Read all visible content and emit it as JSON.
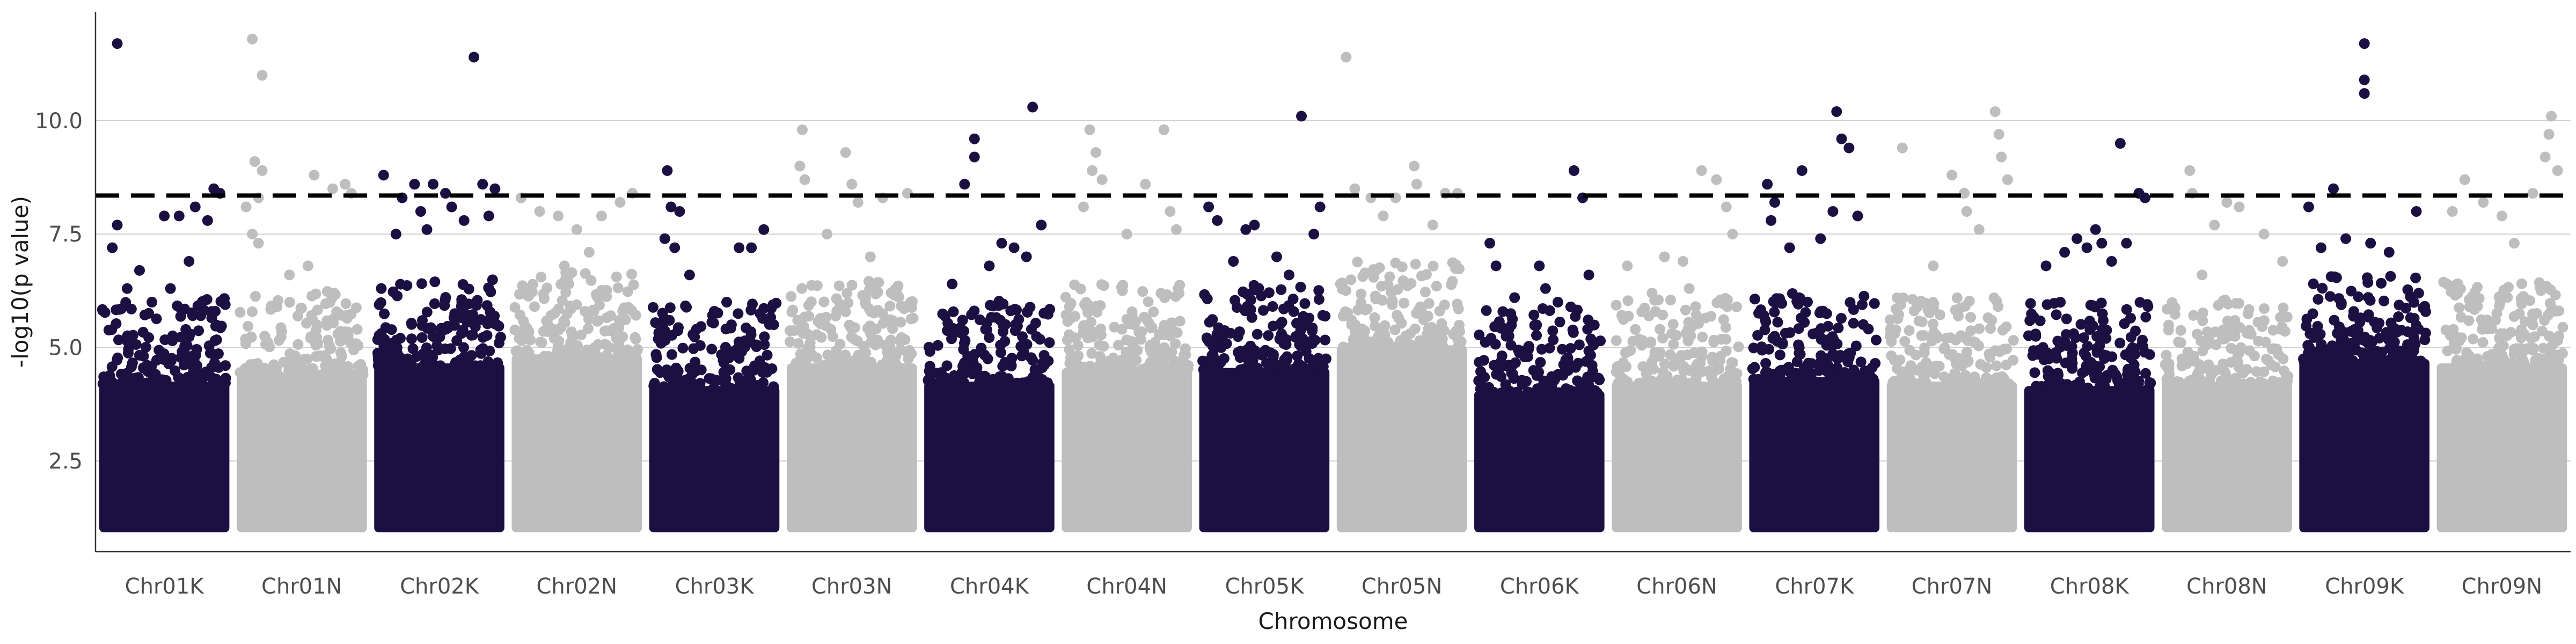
{
  "chart_data": {
    "type": "scatter",
    "subtype": "manhattan",
    "title": "",
    "xlabel": "Chromosome",
    "ylabel": "-log10(p value)",
    "ylim": [
      0.5,
      12.4
    ],
    "yticks": [
      2.5,
      5.0,
      7.5,
      10.0
    ],
    "ytick_labels": [
      "2.5",
      "5.0",
      "7.5",
      "10.0"
    ],
    "grid": "horizontal major",
    "legend": "none",
    "significance_threshold": 8.35,
    "colors": {
      "odd": "#1c0f42",
      "even": "#bebebe",
      "threshold": "#000000",
      "grid": "#d0d0d0",
      "axis": "#333333"
    },
    "categories": [
      "Chr01K",
      "Chr01N",
      "Chr02K",
      "Chr02N",
      "Chr03K",
      "Chr03N",
      "Chr04K",
      "Chr04N",
      "Chr05K",
      "Chr05N",
      "Chr06K",
      "Chr06N",
      "Chr07K",
      "Chr07N",
      "Chr08K",
      "Chr08N",
      "Chr09K",
      "Chr09N"
    ],
    "baseline": 1.0,
    "series": [
      {
        "chromosome": "Chr01K",
        "color_group": "odd",
        "bulk_top": 4.6,
        "points": [
          [
            0.12,
            11.7
          ],
          [
            0.12,
            7.7
          ],
          [
            0.08,
            7.2
          ],
          [
            0.2,
            6.3
          ],
          [
            0.5,
            7.9
          ],
          [
            0.62,
            7.9
          ],
          [
            0.75,
            8.1
          ],
          [
            0.85,
            7.8
          ],
          [
            0.9,
            8.5
          ],
          [
            0.95,
            8.4
          ],
          [
            0.3,
            6.7
          ],
          [
            0.4,
            6.0
          ],
          [
            0.55,
            6.3
          ],
          [
            0.7,
            6.9
          ]
        ]
      },
      {
        "chromosome": "Chr01N",
        "color_group": "even",
        "bulk_top": 4.8,
        "points": [
          [
            0.1,
            11.8
          ],
          [
            0.18,
            11.0
          ],
          [
            0.12,
            9.1
          ],
          [
            0.18,
            8.9
          ],
          [
            0.15,
            8.3
          ],
          [
            0.05,
            8.1
          ],
          [
            0.1,
            7.5
          ],
          [
            0.15,
            7.3
          ],
          [
            0.6,
            8.8
          ],
          [
            0.75,
            8.5
          ],
          [
            0.85,
            8.6
          ],
          [
            0.9,
            8.4
          ],
          [
            0.4,
            6.6
          ],
          [
            0.55,
            6.8
          ],
          [
            0.3,
            5.9
          ]
        ]
      },
      {
        "chromosome": "Chr02K",
        "color_group": "odd",
        "bulk_top": 5.0,
        "points": [
          [
            0.05,
            8.8
          ],
          [
            0.2,
            8.3
          ],
          [
            0.3,
            8.6
          ],
          [
            0.45,
            8.6
          ],
          [
            0.55,
            8.4
          ],
          [
            0.78,
            11.4
          ],
          [
            0.85,
            8.6
          ],
          [
            0.95,
            8.5
          ],
          [
            0.35,
            8.0
          ],
          [
            0.6,
            8.1
          ],
          [
            0.7,
            7.8
          ],
          [
            0.4,
            7.6
          ],
          [
            0.15,
            7.5
          ],
          [
            0.9,
            7.9
          ]
        ]
      },
      {
        "chromosome": "Chr02N",
        "color_group": "even",
        "bulk_top": 5.2,
        "points": [
          [
            0.05,
            8.3
          ],
          [
            0.2,
            8.0
          ],
          [
            0.35,
            7.9
          ],
          [
            0.5,
            7.6
          ],
          [
            0.7,
            7.9
          ],
          [
            0.85,
            8.2
          ],
          [
            0.95,
            8.4
          ],
          [
            0.6,
            7.1
          ],
          [
            0.4,
            6.8
          ]
        ]
      },
      {
        "chromosome": "Chr03K",
        "color_group": "odd",
        "bulk_top": 4.5,
        "points": [
          [
            0.12,
            8.9
          ],
          [
            0.15,
            8.1
          ],
          [
            0.22,
            8.0
          ],
          [
            0.1,
            7.4
          ],
          [
            0.18,
            7.2
          ],
          [
            0.7,
            7.2
          ],
          [
            0.8,
            7.2
          ],
          [
            0.9,
            7.6
          ],
          [
            0.3,
            6.6
          ],
          [
            0.6,
            6.0
          ],
          [
            0.5,
            5.8
          ]
        ]
      },
      {
        "chromosome": "Chr03N",
        "color_group": "even",
        "bulk_top": 5.0,
        "points": [
          [
            0.1,
            9.8
          ],
          [
            0.08,
            9.0
          ],
          [
            0.12,
            8.7
          ],
          [
            0.45,
            9.3
          ],
          [
            0.5,
            8.6
          ],
          [
            0.55,
            8.2
          ],
          [
            0.75,
            8.3
          ],
          [
            0.95,
            8.4
          ],
          [
            0.3,
            7.5
          ],
          [
            0.65,
            7.0
          ]
        ]
      },
      {
        "chromosome": "Chr04K",
        "color_group": "odd",
        "bulk_top": 4.6,
        "points": [
          [
            0.38,
            9.6
          ],
          [
            0.38,
            9.2
          ],
          [
            0.3,
            8.6
          ],
          [
            0.85,
            10.3
          ],
          [
            0.92,
            7.7
          ],
          [
            0.6,
            7.3
          ],
          [
            0.7,
            7.2
          ],
          [
            0.5,
            6.8
          ],
          [
            0.2,
            6.4
          ],
          [
            0.8,
            7.0
          ]
        ]
      },
      {
        "chromosome": "Chr04N",
        "color_group": "even",
        "bulk_top": 4.9,
        "points": [
          [
            0.2,
            9.8
          ],
          [
            0.25,
            9.3
          ],
          [
            0.22,
            8.9
          ],
          [
            0.3,
            8.7
          ],
          [
            0.65,
            8.6
          ],
          [
            0.8,
            9.8
          ],
          [
            0.85,
            8.0
          ],
          [
            0.15,
            8.1
          ],
          [
            0.5,
            7.5
          ],
          [
            0.9,
            7.6
          ]
        ]
      },
      {
        "chromosome": "Chr05K",
        "color_group": "odd",
        "bulk_top": 4.9,
        "points": [
          [
            0.05,
            8.1
          ],
          [
            0.12,
            7.8
          ],
          [
            0.35,
            7.6
          ],
          [
            0.42,
            7.7
          ],
          [
            0.8,
            10.1
          ],
          [
            0.9,
            7.5
          ],
          [
            0.95,
            8.1
          ],
          [
            0.6,
            7.0
          ],
          [
            0.25,
            6.9
          ],
          [
            0.7,
            6.6
          ]
        ]
      },
      {
        "chromosome": "Chr05N",
        "color_group": "even",
        "bulk_top": 5.4,
        "points": [
          [
            0.05,
            11.4
          ],
          [
            0.12,
            8.5
          ],
          [
            0.25,
            8.3
          ],
          [
            0.45,
            8.3
          ],
          [
            0.6,
            9.0
          ],
          [
            0.62,
            8.6
          ],
          [
            0.85,
            8.4
          ],
          [
            0.95,
            8.4
          ],
          [
            0.35,
            7.9
          ],
          [
            0.75,
            7.7
          ]
        ]
      },
      {
        "chromosome": "Chr06K",
        "color_group": "odd",
        "bulk_top": 4.4,
        "points": [
          [
            0.1,
            7.3
          ],
          [
            0.15,
            6.8
          ],
          [
            0.5,
            6.8
          ],
          [
            0.55,
            6.3
          ],
          [
            0.78,
            8.9
          ],
          [
            0.85,
            8.3
          ],
          [
            0.9,
            6.6
          ],
          [
            0.3,
            6.1
          ],
          [
            0.65,
            6.0
          ]
        ]
      },
      {
        "chromosome": "Chr06N",
        "color_group": "even",
        "bulk_top": 4.6,
        "points": [
          [
            0.1,
            6.8
          ],
          [
            0.4,
            7.0
          ],
          [
            0.55,
            6.9
          ],
          [
            0.7,
            8.9
          ],
          [
            0.82,
            8.7
          ],
          [
            0.9,
            8.1
          ],
          [
            0.3,
            6.2
          ],
          [
            0.6,
            6.3
          ],
          [
            0.95,
            7.5
          ]
        ]
      },
      {
        "chromosome": "Chr07K",
        "color_group": "odd",
        "bulk_top": 4.7,
        "points": [
          [
            0.12,
            8.6
          ],
          [
            0.18,
            8.2
          ],
          [
            0.15,
            7.8
          ],
          [
            0.4,
            8.9
          ],
          [
            0.68,
            10.2
          ],
          [
            0.72,
            9.6
          ],
          [
            0.78,
            9.4
          ],
          [
            0.65,
            8.0
          ],
          [
            0.85,
            7.9
          ],
          [
            0.55,
            7.4
          ],
          [
            0.3,
            7.2
          ]
        ]
      },
      {
        "chromosome": "Chr07N",
        "color_group": "even",
        "bulk_top": 4.6,
        "points": [
          [
            0.1,
            9.4
          ],
          [
            0.35,
            6.8
          ],
          [
            0.5,
            8.8
          ],
          [
            0.6,
            8.4
          ],
          [
            0.62,
            8.0
          ],
          [
            0.85,
            10.2
          ],
          [
            0.88,
            9.7
          ],
          [
            0.9,
            9.2
          ],
          [
            0.95,
            8.7
          ],
          [
            0.72,
            7.6
          ]
        ]
      },
      {
        "chromosome": "Chr08K",
        "color_group": "odd",
        "bulk_top": 4.5,
        "points": [
          [
            0.3,
            7.1
          ],
          [
            0.4,
            7.4
          ],
          [
            0.48,
            7.2
          ],
          [
            0.55,
            7.6
          ],
          [
            0.6,
            7.3
          ],
          [
            0.75,
            9.5
          ],
          [
            0.8,
            7.3
          ],
          [
            0.9,
            8.4
          ],
          [
            0.95,
            8.3
          ],
          [
            0.15,
            6.8
          ],
          [
            0.68,
            6.9
          ]
        ]
      },
      {
        "chromosome": "Chr08N",
        "color_group": "even",
        "bulk_top": 4.6,
        "points": [
          [
            0.2,
            8.9
          ],
          [
            0.22,
            8.4
          ],
          [
            0.4,
            7.7
          ],
          [
            0.5,
            8.2
          ],
          [
            0.6,
            8.1
          ],
          [
            0.8,
            7.5
          ],
          [
            0.95,
            6.9
          ],
          [
            0.3,
            6.6
          ]
        ]
      },
      {
        "chromosome": "Chr09K",
        "color_group": "odd",
        "bulk_top": 5.1,
        "points": [
          [
            0.05,
            8.1
          ],
          [
            0.25,
            8.5
          ],
          [
            0.5,
            11.7
          ],
          [
            0.5,
            10.9
          ],
          [
            0.5,
            10.6
          ],
          [
            0.55,
            7.3
          ],
          [
            0.92,
            8.0
          ],
          [
            0.35,
            7.4
          ],
          [
            0.7,
            7.1
          ],
          [
            0.15,
            7.2
          ]
        ]
      },
      {
        "chromosome": "Chr09N",
        "color_group": "even",
        "bulk_top": 5.0,
        "points": [
          [
            0.2,
            8.7
          ],
          [
            0.1,
            8.0
          ],
          [
            0.35,
            8.2
          ],
          [
            0.5,
            7.9
          ],
          [
            0.75,
            8.4
          ],
          [
            0.85,
            9.2
          ],
          [
            0.9,
            10.1
          ],
          [
            0.88,
            9.7
          ],
          [
            0.95,
            8.9
          ],
          [
            0.6,
            7.3
          ]
        ]
      }
    ]
  }
}
